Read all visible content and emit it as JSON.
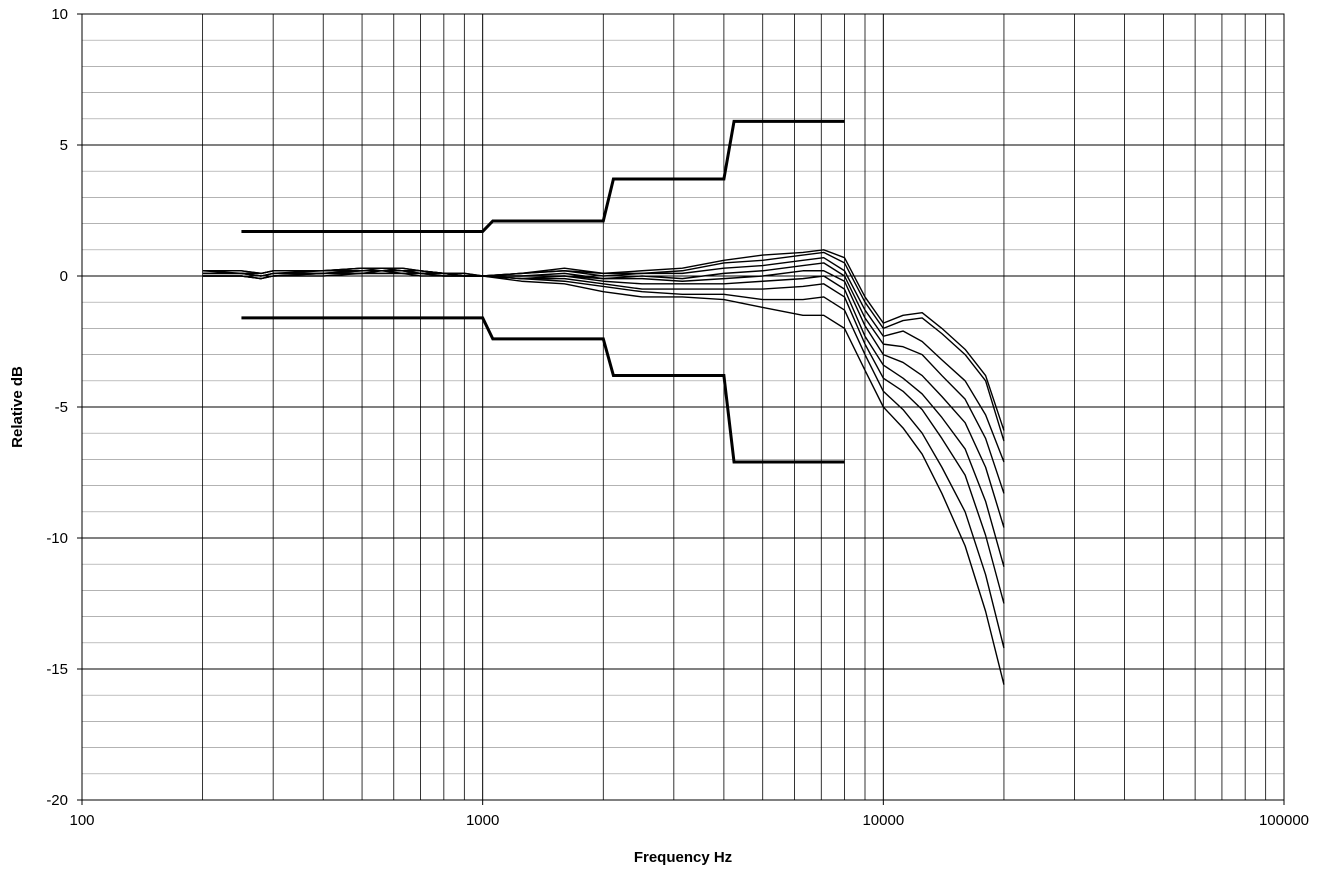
{
  "chart_data": {
    "type": "line",
    "xlabel": "Frequency Hz",
    "ylabel": "Relative dB",
    "x_scale": "log",
    "xlim": [
      100,
      100000
    ],
    "ylim": [
      -20,
      10
    ],
    "x_ticks": [
      100,
      1000,
      10000,
      100000
    ],
    "x_tick_labels": [
      "100",
      "1000",
      "10000",
      "100000"
    ],
    "y_ticks": [
      10,
      5,
      0,
      -5,
      -10,
      -15,
      -20
    ],
    "y_tick_labels": [
      "10",
      "5",
      "0",
      "-5",
      "-10",
      "-15",
      "-20"
    ],
    "y_minor_step": 1,
    "grid": true,
    "legend": "none",
    "tolerance_limits": [
      {
        "x": [
          250,
          1000,
          1060,
          2000,
          2120,
          4000,
          4240,
          8000
        ],
        "y": [
          1.7,
          1.7,
          2.1,
          2.1,
          3.7,
          3.7,
          5.9,
          5.9
        ]
      },
      {
        "x": [
          250,
          1000,
          1060,
          2000,
          2120,
          4000,
          4240,
          8000
        ],
        "y": [
          -1.6,
          -1.6,
          -2.4,
          -2.4,
          -3.8,
          -3.8,
          -7.1,
          -7.1
        ]
      }
    ],
    "x": [
      200,
      250,
      280,
      300,
      400,
      500,
      560,
      630,
      700,
      800,
      900,
      1000,
      1250,
      1600,
      2000,
      2500,
      3150,
      4000,
      5000,
      6300,
      7100,
      8000,
      9000,
      10000,
      11200,
      12500,
      14000,
      16000,
      18000,
      20000
    ],
    "series": [
      {
        "values": [
          0.2,
          0.2,
          0.1,
          0.2,
          0.2,
          0.3,
          0.3,
          0.3,
          0.2,
          0.1,
          0.1,
          0.0,
          0.1,
          0.3,
          0.1,
          0.2,
          0.3,
          0.6,
          0.8,
          0.9,
          1.0,
          0.7,
          -0.8,
          -1.8,
          -1.5,
          -1.4,
          -2.0,
          -2.8,
          -3.8,
          -5.9
        ]
      },
      {
        "values": [
          0.2,
          0.2,
          0.1,
          0.2,
          0.2,
          0.3,
          0.3,
          0.3,
          0.2,
          0.1,
          0.1,
          0.0,
          0.1,
          0.2,
          0.1,
          0.1,
          0.2,
          0.5,
          0.6,
          0.8,
          0.9,
          0.5,
          -1.0,
          -2.0,
          -1.7,
          -1.6,
          -2.2,
          -3.0,
          -4.0,
          -6.3
        ]
      },
      {
        "values": [
          0.2,
          0.1,
          0.1,
          0.2,
          0.2,
          0.3,
          0.3,
          0.2,
          0.2,
          0.1,
          0.0,
          0.0,
          0.1,
          0.2,
          0.0,
          0.1,
          0.1,
          0.3,
          0.4,
          0.6,
          0.7,
          0.2,
          -1.3,
          -2.3,
          -2.1,
          -2.5,
          -3.2,
          -4.0,
          -5.3,
          -7.1
        ]
      },
      {
        "values": [
          0.1,
          0.1,
          0.0,
          0.1,
          0.2,
          0.2,
          0.3,
          0.2,
          0.2,
          0.1,
          0.0,
          0.0,
          0.0,
          0.1,
          -0.1,
          0.0,
          -0.1,
          0.1,
          0.2,
          0.4,
          0.5,
          0.0,
          -1.6,
          -2.6,
          -2.7,
          -3.0,
          -3.8,
          -4.7,
          -6.2,
          -8.3
        ]
      },
      {
        "values": [
          0.1,
          0.1,
          0.0,
          0.1,
          0.1,
          0.2,
          0.2,
          0.2,
          0.1,
          0.1,
          0.0,
          0.0,
          0.0,
          0.0,
          -0.1,
          -0.1,
          -0.2,
          -0.1,
          0.0,
          0.2,
          0.2,
          -0.2,
          -1.9,
          -3.0,
          -3.3,
          -3.8,
          -4.6,
          -5.6,
          -7.3,
          -9.6
        ]
      },
      {
        "values": [
          0.1,
          0.1,
          0.0,
          0.1,
          0.1,
          0.2,
          0.2,
          0.2,
          0.1,
          0.1,
          0.0,
          0.0,
          -0.1,
          0.0,
          -0.2,
          -0.3,
          -0.3,
          -0.3,
          -0.2,
          -0.1,
          0.0,
          -0.5,
          -2.3,
          -3.4,
          -3.9,
          -4.5,
          -5.4,
          -6.6,
          -8.6,
          -11.1
        ]
      },
      {
        "values": [
          0.0,
          0.0,
          -0.1,
          0.0,
          0.1,
          0.1,
          0.2,
          0.1,
          0.1,
          0.0,
          0.0,
          0.0,
          -0.1,
          -0.1,
          -0.3,
          -0.5,
          -0.5,
          -0.5,
          -0.5,
          -0.4,
          -0.3,
          -0.8,
          -2.6,
          -3.9,
          -4.4,
          -5.1,
          -6.2,
          -7.6,
          -9.9,
          -12.5
        ]
      },
      {
        "values": [
          0.0,
          0.0,
          -0.1,
          0.0,
          0.1,
          0.1,
          0.1,
          0.1,
          0.1,
          0.0,
          0.0,
          0.0,
          -0.1,
          -0.2,
          -0.4,
          -0.6,
          -0.7,
          -0.7,
          -0.9,
          -0.9,
          -0.8,
          -1.3,
          -3.0,
          -4.4,
          -5.1,
          -6.0,
          -7.3,
          -9.0,
          -11.4,
          -14.2
        ]
      },
      {
        "values": [
          0.0,
          0.0,
          -0.1,
          0.0,
          0.0,
          0.1,
          0.1,
          0.1,
          0.0,
          0.0,
          0.0,
          0.0,
          -0.2,
          -0.3,
          -0.6,
          -0.8,
          -0.8,
          -0.9,
          -1.2,
          -1.5,
          -1.5,
          -2.0,
          -3.6,
          -5.0,
          -5.8,
          -6.8,
          -8.3,
          -10.3,
          -12.8,
          -15.6
        ]
      }
    ]
  }
}
